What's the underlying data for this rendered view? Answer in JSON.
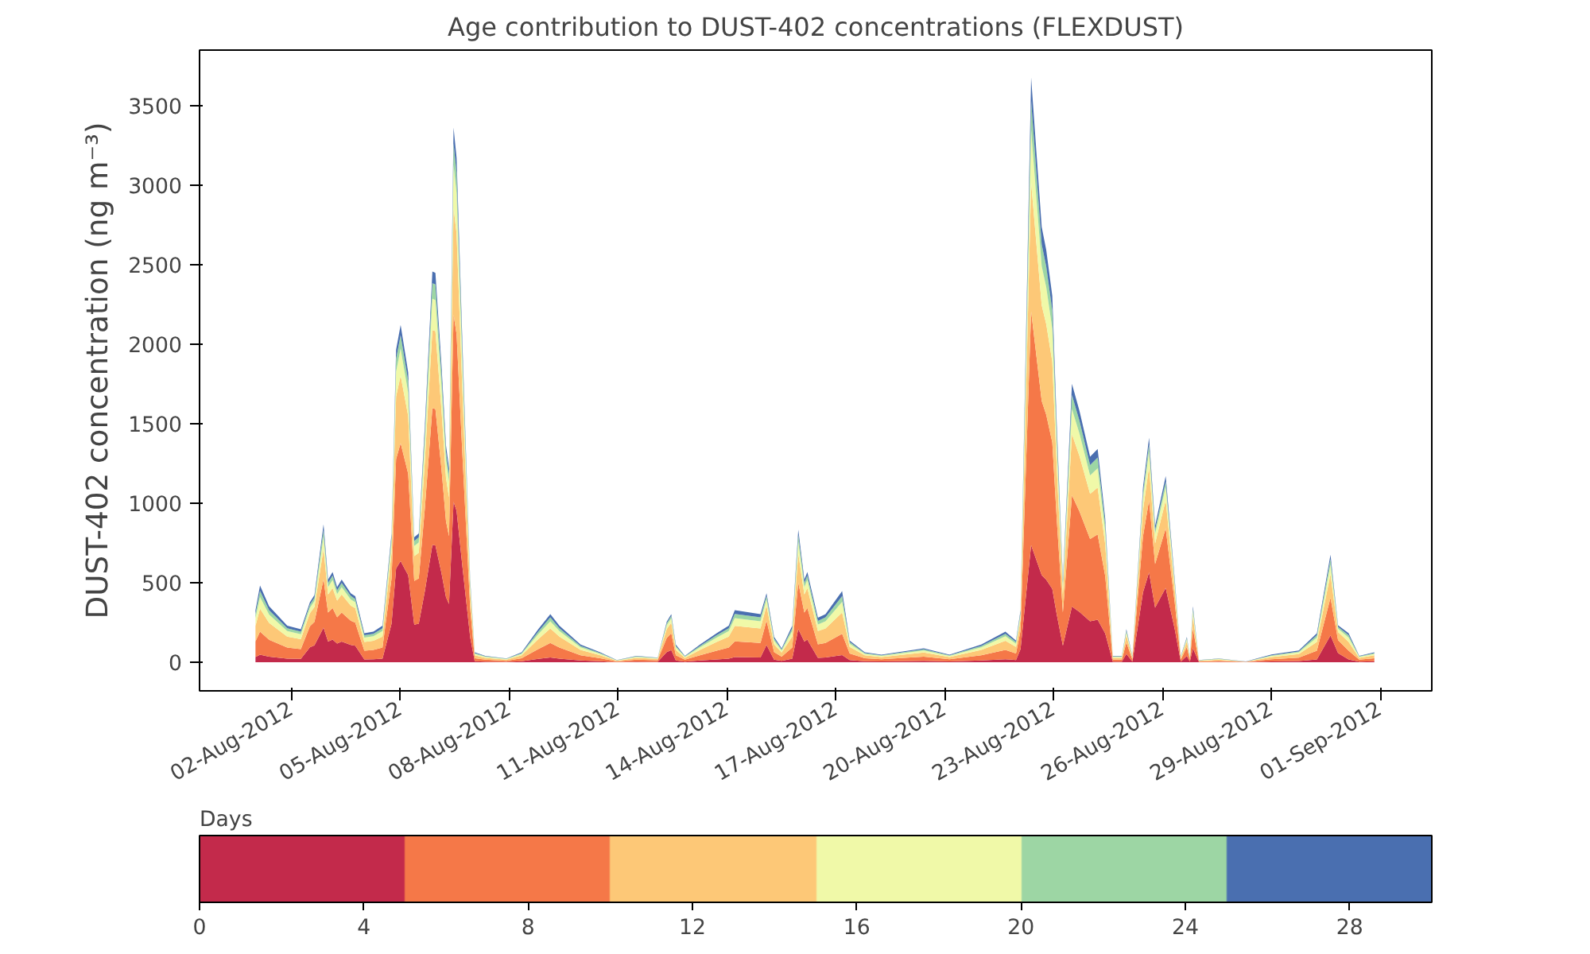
{
  "chart_data": {
    "type": "area",
    "stacked": true,
    "title": "Age contribution to DUST-402 concentrations (FLEXDUST)",
    "ylabel": "DUST-402 concentration (ng m⁻³)",
    "clabel": "Days",
    "clim": [
      0,
      30
    ],
    "cticks": [
      0,
      4,
      8,
      12,
      16,
      20,
      24,
      28
    ],
    "xlim": [
      "2012-07-30T11:00",
      "2012-09-02T10:00"
    ],
    "xticks": [
      {
        "value": "2012-08-02",
        "label": "02-Aug-2012"
      },
      {
        "value": "2012-08-05",
        "label": "05-Aug-2012"
      },
      {
        "value": "2012-08-08",
        "label": "08-Aug-2012"
      },
      {
        "value": "2012-08-11",
        "label": "11-Aug-2012"
      },
      {
        "value": "2012-08-14",
        "label": "14-Aug-2012"
      },
      {
        "value": "2012-08-17",
        "label": "17-Aug-2012"
      },
      {
        "value": "2012-08-20",
        "label": "20-Aug-2012"
      },
      {
        "value": "2012-08-23",
        "label": "23-Aug-2012"
      },
      {
        "value": "2012-08-26",
        "label": "26-Aug-2012"
      },
      {
        "value": "2012-08-29",
        "label": "29-Aug-2012"
      },
      {
        "value": "2012-09-01",
        "label": "01-Sep-2012"
      }
    ],
    "ylim": [
      -180,
      3850
    ],
    "yticks": [
      0,
      500,
      1000,
      1500,
      2000,
      2500,
      3000,
      3500
    ],
    "x": [
      "2012-08-01T00:00",
      "2012-08-01T03:00",
      "2012-08-01T09:00",
      "2012-08-01T21:00",
      "2012-08-02T06:00",
      "2012-08-02T12:00",
      "2012-08-02T15:00",
      "2012-08-02T21:00",
      "2012-08-03T00:00",
      "2012-08-03T03:00",
      "2012-08-03T06:00",
      "2012-08-03T09:00",
      "2012-08-03T15:00",
      "2012-08-03T18:00",
      "2012-08-04T00:00",
      "2012-08-04T06:00",
      "2012-08-04T12:00",
      "2012-08-04T18:00",
      "2012-08-04T21:00",
      "2012-08-05T00:00",
      "2012-08-05T05:00",
      "2012-08-05T09:00",
      "2012-08-05T12:00",
      "2012-08-05T16:00",
      "2012-08-05T21:00",
      "2012-08-05T23:00",
      "2012-08-06T03:00",
      "2012-08-06T06:00",
      "2012-08-06T08:00",
      "2012-08-06T11:00",
      "2012-08-06T13:00",
      "2012-08-06T17:00",
      "2012-08-06T22:00",
      "2012-08-07T01:00",
      "2012-08-07T08:00",
      "2012-08-07T22:00",
      "2012-08-08T08:00",
      "2012-08-08T19:00",
      "2012-08-09T03:00",
      "2012-08-09T09:00",
      "2012-08-09T23:00",
      "2012-08-10T12:00",
      "2012-08-10T23:00",
      "2012-08-11T12:00",
      "2012-08-12T02:00",
      "2012-08-12T08:00",
      "2012-08-12T11:00",
      "2012-08-12T14:00",
      "2012-08-12T20:00",
      "2012-08-13T06:00",
      "2012-08-13T17:00",
      "2012-08-14T01:00",
      "2012-08-14T05:00",
      "2012-08-14T22:00",
      "2012-08-15T02:00",
      "2012-08-15T07:00",
      "2012-08-15T12:00",
      "2012-08-15T19:00",
      "2012-08-15T23:00",
      "2012-08-16T03:00",
      "2012-08-16T05:00",
      "2012-08-16T12:00",
      "2012-08-16T17:00",
      "2012-08-17T04:00",
      "2012-08-17T09:00",
      "2012-08-17T19:00",
      "2012-08-18T06:00",
      "2012-08-19T10:00",
      "2012-08-20T03:00",
      "2012-08-21T00:00",
      "2012-08-21T16:00",
      "2012-08-21T23:00",
      "2012-08-22T02:00",
      "2012-08-22T09:00",
      "2012-08-22T16:00",
      "2012-08-22T19:00",
      "2012-08-22T23:00",
      "2012-08-23T02:00",
      "2012-08-23T06:00",
      "2012-08-23T12:00",
      "2012-08-23T17:00",
      "2012-08-24T00:00",
      "2012-08-24T05:00",
      "2012-08-24T10:00",
      "2012-08-24T15:00",
      "2012-08-24T21:00",
      "2012-08-25T00:00",
      "2012-08-25T04:00",
      "2012-08-25T11:00",
      "2012-08-25T15:00",
      "2012-08-25T19:00",
      "2012-08-26T02:00",
      "2012-08-26T08:00",
      "2012-08-26T12:00",
      "2012-08-26T16:00",
      "2012-08-26T18:00",
      "2012-08-26T20:00",
      "2012-08-27T00:00",
      "2012-08-27T13:00",
      "2012-08-28T07:00",
      "2012-08-29T00:00",
      "2012-08-29T18:00",
      "2012-08-30T06:00",
      "2012-08-30T15:00",
      "2012-08-30T20:00",
      "2012-08-31T03:00",
      "2012-08-31T10:00",
      "2012-08-31T20:00"
    ],
    "series": [
      {
        "color": "#c32a4b",
        "values": [
          33,
          48,
          35,
          23,
          21,
          94,
          106,
          217,
          130,
          142,
          118,
          130,
          109,
          104,
          18,
          19,
          23,
          243,
          590,
          636,
          547,
          236,
          243,
          446,
          737,
          735,
          561,
          409,
          366,
          1009,
          952,
          590,
          156,
          6,
          4,
          2,
          6,
          21,
          30,
          23,
          11,
          6,
          1,
          4,
          3,
          64,
          76,
          11,
          4,
          11,
          18,
          23,
          33,
          30,
          109,
          16,
          9,
          23,
          209,
          130,
          142,
          28,
          30,
          45,
          14,
          6,
          5,
          9,
          5,
          11,
          19,
          14,
          82,
          736,
          548,
          519,
          461,
          297,
          104,
          350,
          316,
          258,
          268,
          181,
          4,
          4,
          52,
          4,
          440,
          565,
          343,
          468,
          208,
          4,
          40,
          4,
          88,
          1,
          2,
          1,
          5,
          7,
          18,
          169,
          58,
          18,
          4,
          6
        ]
      },
      {
        "color": "#f57848",
        "values": [
          98,
          145,
          106,
          69,
          62,
          132,
          148,
          304,
          182,
          199,
          165,
          182,
          152,
          145,
          55,
          58,
          69,
          284,
          688,
          742,
          638,
          275,
          284,
          520,
          860,
          857,
          655,
          477,
          427,
          1177,
          1110,
          688,
          182,
          19,
          12,
          7,
          19,
          62,
          91,
          69,
          33,
          19,
          4,
          12,
          9,
          89,
          106,
          33,
          12,
          33,
          55,
          69,
          98,
          91,
          152,
          48,
          26,
          69,
          292,
          182,
          199,
          84,
          91,
          134,
          41,
          19,
          14,
          26,
          14,
          33,
          58,
          41,
          115,
          1471,
          1095,
          1037,
          922,
          594,
          208,
          700,
          632,
          517,
          536,
          362,
          12,
          12,
          72,
          12,
          352,
          452,
          275,
          375,
          166,
          12,
          56,
          12,
          123,
          4,
          7,
          1,
          14,
          22,
          55,
          236,
          81,
          55,
          12,
          19
        ]
      },
      {
        "color": "#fdc877",
        "values": [
          98,
          145,
          106,
          69,
          62,
          83,
          93,
          191,
          114,
          125,
          104,
          114,
          95,
          91,
          55,
          58,
          69,
          162,
          393,
          424,
          364,
          157,
          162,
          297,
          492,
          490,
          374,
          273,
          244,
          673,
          634,
          393,
          104,
          19,
          12,
          7,
          19,
          62,
          91,
          69,
          33,
          19,
          4,
          12,
          9,
          56,
          67,
          33,
          12,
          33,
          55,
          69,
          98,
          91,
          95,
          48,
          26,
          69,
          183,
          114,
          125,
          84,
          91,
          134,
          41,
          19,
          14,
          26,
          14,
          33,
          58,
          41,
          72,
          809,
          602,
          570,
          507,
          327,
          114,
          385,
          348,
          284,
          295,
          199,
          12,
          12,
          46,
          12,
          165,
          212,
          129,
          176,
          78,
          12,
          35,
          12,
          77,
          4,
          7,
          1,
          14,
          22,
          55,
          149,
          51,
          55,
          12,
          19
        ]
      },
      {
        "color": "#f0f9a8",
        "values": [
          49,
          72,
          53,
          35,
          31,
          34,
          38,
          78,
          47,
          51,
          42,
          47,
          39,
          37,
          27,
          29,
          35,
          65,
          157,
          170,
          146,
          63,
          65,
          119,
          197,
          196,
          150,
          109,
          98,
          269,
          254,
          157,
          42,
          9,
          6,
          4,
          9,
          31,
          46,
          35,
          17,
          9,
          2,
          6,
          4,
          23,
          27,
          17,
          6,
          17,
          27,
          35,
          49,
          46,
          39,
          24,
          13,
          35,
          75,
          47,
          51,
          42,
          46,
          67,
          20,
          9,
          7,
          13,
          7,
          17,
          29,
          20,
          30,
          331,
          246,
          233,
          207,
          134,
          47,
          158,
          142,
          116,
          121,
          82,
          6,
          6,
          19,
          6,
          77,
          99,
          60,
          82,
          36,
          6,
          14,
          6,
          32,
          2,
          4,
          1,
          7,
          11,
          27,
          61,
          21,
          27,
          6,
          9
        ]
      },
      {
        "color": "#9dd6a4",
        "values": [
          26,
          39,
          28,
          18,
          17,
          19,
          21,
          43,
          26,
          28,
          24,
          26,
          22,
          21,
          15,
          15,
          18,
          32,
          79,
          85,
          73,
          31,
          32,
          59,
          98,
          98,
          75,
          55,
          49,
          135,
          127,
          79,
          21,
          5,
          3,
          2,
          5,
          17,
          24,
          18,
          9,
          5,
          2,
          3,
          2,
          13,
          15,
          9,
          3,
          9,
          15,
          18,
          26,
          24,
          22,
          13,
          7,
          18,
          42,
          26,
          28,
          22,
          24,
          36,
          11,
          5,
          4,
          7,
          4,
          9,
          15,
          11,
          16,
          184,
          137,
          130,
          115,
          74,
          26,
          88,
          79,
          65,
          67,
          45,
          3,
          3,
          10,
          3,
          33,
          42,
          26,
          35,
          16,
          3,
          8,
          3,
          18,
          2,
          2,
          0,
          4,
          6,
          15,
          34,
          12,
          15,
          3,
          5
        ]
      },
      {
        "color": "#4a6fb0",
        "values": [
          23,
          34,
          25,
          16,
          14,
          15,
          17,
          35,
          21,
          23,
          19,
          21,
          17,
          17,
          13,
          14,
          16,
          24,
          59,
          64,
          55,
          24,
          24,
          45,
          74,
          73,
          56,
          41,
          37,
          101,
          95,
          59,
          16,
          4,
          3,
          2,
          4,
          14,
          21,
          16,
          8,
          4,
          1,
          3,
          2,
          10,
          12,
          8,
          3,
          8,
          13,
          16,
          23,
          21,
          17,
          11,
          6,
          16,
          33,
          21,
          23,
          20,
          21,
          31,
          9,
          4,
          3,
          6,
          3,
          8,
          14,
          9,
          13,
          147,
          110,
          104,
          92,
          59,
          21,
          70,
          63,
          52,
          54,
          36,
          3,
          3,
          8,
          3,
          33,
          42,
          26,
          35,
          16,
          3,
          6,
          3,
          14,
          1,
          2,
          1,
          5,
          6,
          13,
          27,
          9,
          13,
          3,
          4
        ]
      }
    ]
  }
}
